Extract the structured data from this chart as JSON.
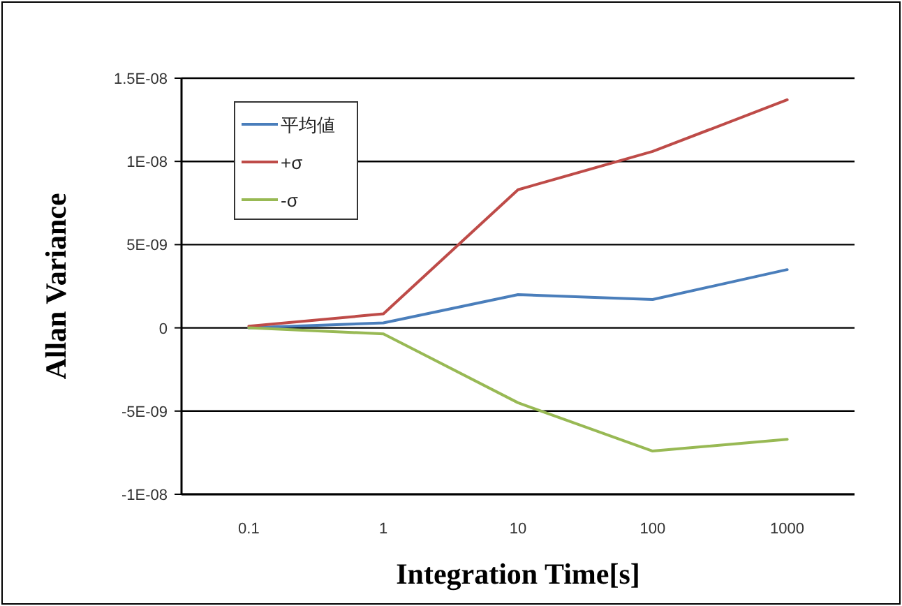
{
  "chart_data": {
    "type": "line",
    "xlabel": "Integration Time[s]",
    "ylabel": "Allan Variance",
    "categories": [
      "0.1",
      "1",
      "10",
      "100",
      "1000"
    ],
    "series": [
      {
        "name": "平均値",
        "color": "#4a7ebb",
        "values": [
          0,
          3e-10,
          2e-09,
          1.7e-09,
          3.5e-09
        ]
      },
      {
        "name": "+σ",
        "color": "#be4b48",
        "values": [
          1e-10,
          8.4e-10,
          8.3e-09,
          1.06e-08,
          1.37e-08
        ]
      },
      {
        "name": "-σ",
        "color": "#98b954",
        "values": [
          0,
          -3.6e-10,
          -4.5e-09,
          -7.4e-09,
          -6.7e-09
        ]
      }
    ],
    "ylim": [
      -1e-08,
      1.5e-08
    ],
    "yticks": [
      {
        "value": -1e-08,
        "label": "-1E-08"
      },
      {
        "value": -5e-09,
        "label": "-5E-09"
      },
      {
        "value": 0,
        "label": "0"
      },
      {
        "value": 5e-09,
        "label": "5E-09"
      },
      {
        "value": 1e-08,
        "label": "1E-08"
      },
      {
        "value": 1.5e-08,
        "label": "1.5E-08"
      }
    ],
    "grid": "y",
    "legend": "top left",
    "marker": "none",
    "line_style": "solid"
  }
}
